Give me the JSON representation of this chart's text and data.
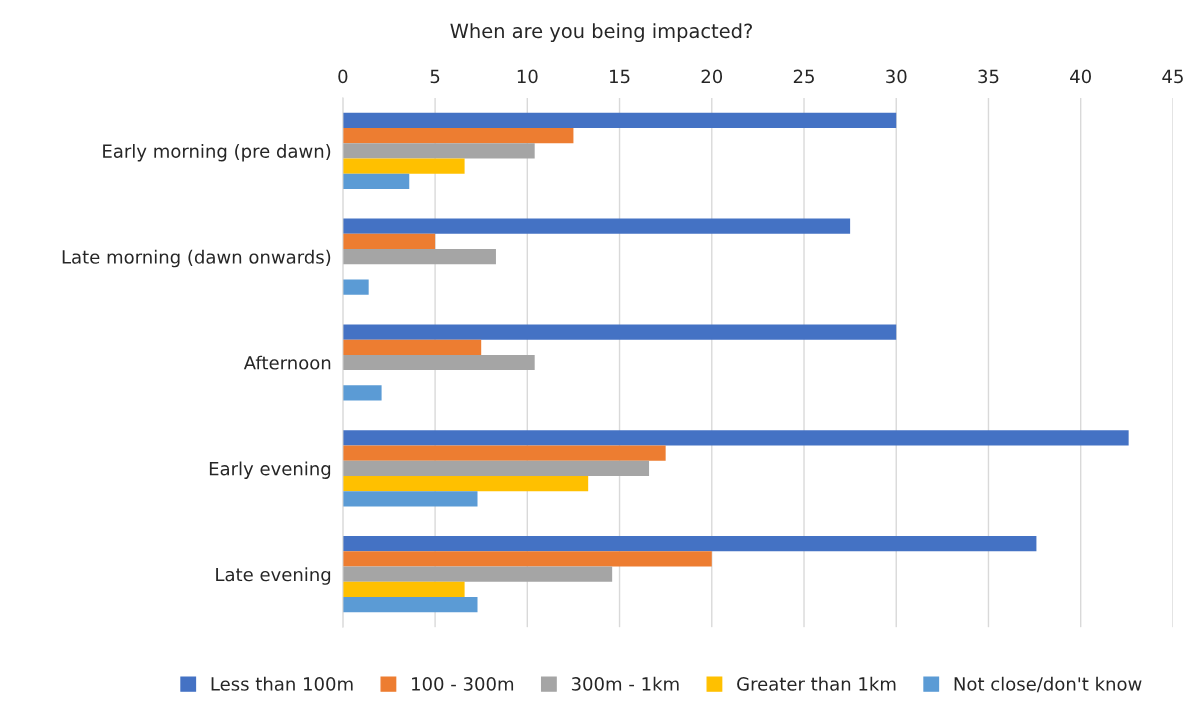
{
  "chart_data": {
    "type": "bar",
    "orientation": "horizontal",
    "title": "When are you being impacted?",
    "categories": [
      "Early morning (pre dawn)",
      "Late morning (dawn onwards)",
      "Afternoon",
      "Early evening",
      "Late evening"
    ],
    "series": [
      {
        "name": "Less than 100m",
        "color": "#4472c4",
        "values": [
          30,
          27.5,
          30,
          42.6,
          37.6
        ]
      },
      {
        "name": "100 - 300m",
        "color": "#ed7d31",
        "values": [
          12.5,
          5,
          7.5,
          17.5,
          20
        ]
      },
      {
        "name": "300m - 1km",
        "color": "#a5a5a5",
        "values": [
          10.4,
          8.3,
          10.4,
          16.6,
          14.6
        ]
      },
      {
        "name": "Greater than 1km",
        "color": "#ffc000",
        "values": [
          6.6,
          0,
          0,
          13.3,
          6.6
        ]
      },
      {
        "name": "Not close/don't know",
        "color": "#5b9bd5",
        "values": [
          3.6,
          1.4,
          2.1,
          7.3,
          7.3
        ]
      }
    ],
    "xlim": [
      0,
      45
    ],
    "xticks": [
      0,
      5,
      10,
      15,
      20,
      25,
      30,
      35,
      40,
      45
    ],
    "grid": "x",
    "legend": "bottom"
  }
}
